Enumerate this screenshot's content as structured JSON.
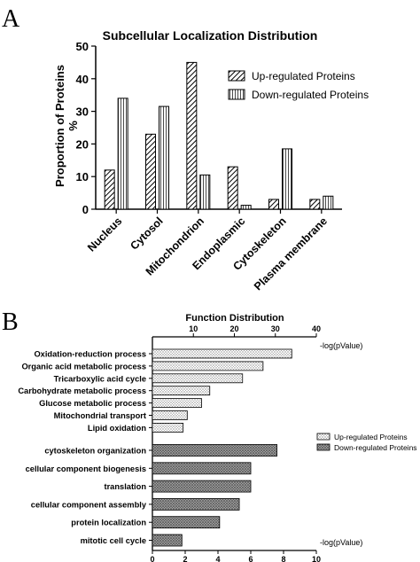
{
  "panel_labels": [
    "A",
    "B"
  ],
  "chart_data": [
    {
      "type": "bar",
      "title": "Subcellular Localization Distribution",
      "ylabel": "Proportion of Proteins\n%",
      "ylabel_lines": [
        "Proportion of Proteins",
        "%"
      ],
      "xlabel": "",
      "ylim": [
        0,
        50
      ],
      "yticks": [
        "0",
        "10",
        "20",
        "30",
        "40",
        "50"
      ],
      "categories": [
        "Nucleus",
        "Cytosol",
        "Mitochondrion",
        "Endoplasmic",
        "Cytoskeleton",
        "Plasma membrane"
      ],
      "series": [
        {
          "name": "Up-regulated Proteins",
          "values": [
            12,
            23,
            45,
            13,
            3,
            3
          ],
          "pattern": "diagonal-hatch"
        },
        {
          "name": "Down-regulated Proteins",
          "values": [
            34,
            31.5,
            10.5,
            1.2,
            18.5,
            4
          ],
          "pattern": "vertical-lines"
        }
      ],
      "legend_position": "top-right",
      "grid": false
    },
    {
      "type": "bar",
      "orientation": "horizontal",
      "title": "Function Distribution",
      "series": [
        {
          "name": "Up-regulated Proteins",
          "axis": "top",
          "axis_label": "-log(pValue)",
          "xlim": [
            0,
            40
          ],
          "ticks": [
            "10",
            "20",
            "30",
            "40"
          ],
          "categories": [
            "Oxidation-reduction process",
            "Organic acid metabolic process",
            "Tricarboxylic acid cycle",
            "Carbohydrate metabolic process",
            "Glucose metabolic process",
            "Mitochondrial transport",
            "Lipid oxidation"
          ],
          "values": [
            34,
            27,
            22,
            14,
            12,
            8.5,
            7.5
          ],
          "pattern": "dotted-light"
        },
        {
          "name": "Down-regulated Proteins",
          "axis": "bottom",
          "axis_label": "-log(pValue)",
          "xlim": [
            0,
            10
          ],
          "ticks": [
            "0",
            "2",
            "4",
            "6",
            "8",
            "10"
          ],
          "categories": [
            "cytoskeleton organization",
            "cellular component biogenesis",
            "translation",
            "cellular component assembly",
            "protein localization",
            "mitotic cell cycle"
          ],
          "values": [
            7.6,
            6.0,
            6.0,
            5.3,
            4.1,
            1.8
          ],
          "pattern": "dotted-dark"
        }
      ],
      "legend_position": "right",
      "grid": false
    }
  ]
}
